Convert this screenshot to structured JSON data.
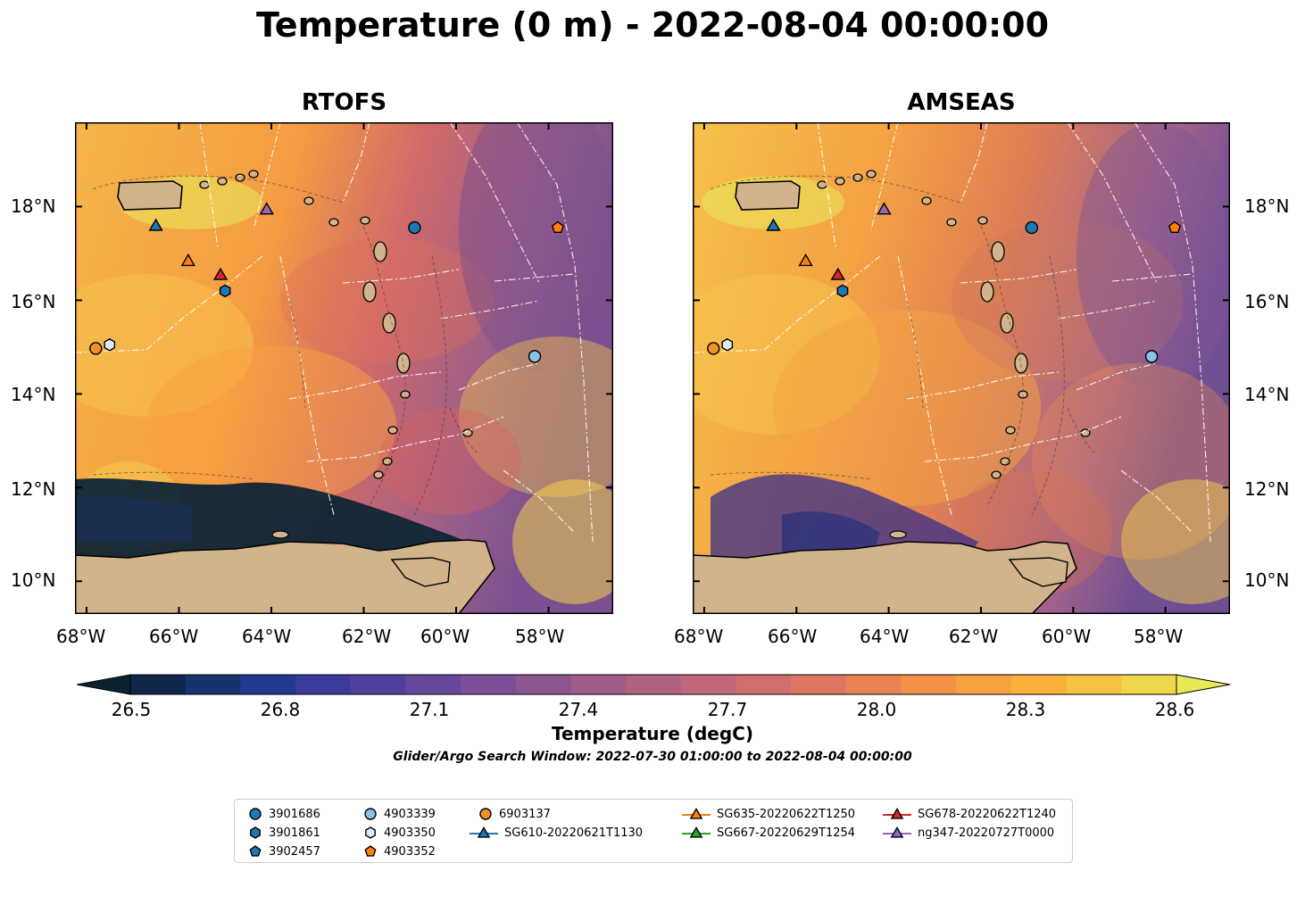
{
  "title": "Temperature (0 m) - 2022-08-04 00:00:00",
  "panels": [
    {
      "title": "RTOFS"
    },
    {
      "title": "AMSEAS"
    }
  ],
  "lon_labels": [
    "68°W",
    "66°W",
    "64°W",
    "62°W",
    "60°W",
    "58°W"
  ],
  "lat_labels": [
    "18°N",
    "16°N",
    "14°N",
    "12°N",
    "10°N"
  ],
  "colorbar": {
    "label": "Temperature (degC)",
    "min": 26.5,
    "max": 28.6,
    "ticks": [
      "26.5",
      "26.8",
      "27.1",
      "27.4",
      "27.7",
      "28.0",
      "28.3",
      "28.6"
    ]
  },
  "search_window": "Glider/Argo Search Window: 2022-07-30 01:00:00 to 2022-08-04 00:00:00",
  "colors": {
    "land": "#d2b48c",
    "ocean_cool": "#0f2535",
    "ocean_warm": "#f9a23b",
    "blue": "#1f77b4",
    "lightblue": "#8ec0e6",
    "orange": "#ff7f0e",
    "green": "#2ca02c",
    "red": "#d62728",
    "purple": "#9467bd"
  },
  "legend": [
    {
      "label": "3901686",
      "marker": "circle",
      "color": "#1f77b4"
    },
    {
      "label": "3901861",
      "marker": "hexagon",
      "color": "#1f77b4"
    },
    {
      "label": "3902457",
      "marker": "pentagon",
      "color": "#1f77b4"
    },
    {
      "label": "4903339",
      "marker": "circle",
      "color": "#8ec0e6"
    },
    {
      "label": "4903350",
      "marker": "hexagon",
      "color": "#deebf7"
    },
    {
      "label": "4903352",
      "marker": "pentagon",
      "color": "#ff7f0e"
    },
    {
      "label": "6903137",
      "marker": "circle",
      "color": "#f28e2b"
    },
    {
      "label": "SG610-20220621T1130",
      "marker": "triangle-line",
      "color": "#1f77b4"
    },
    {
      "label": "SG635-20220622T1250",
      "marker": "triangle-line",
      "color": "#ff7f0e"
    },
    {
      "label": "SG667-20220629T1254",
      "marker": "triangle-line",
      "color": "#2ca02c"
    },
    {
      "label": "SG678-20220622T1240",
      "marker": "triangle-line",
      "color": "#d62728"
    },
    {
      "label": "ng347-20220727T0000",
      "marker": "triangle-line",
      "color": "#9467bd"
    }
  ],
  "observations": [
    {
      "id": "3901686",
      "lon": -60.9,
      "lat": 17.55,
      "marker": "circle",
      "color": "#1f77b4"
    },
    {
      "id": "3901861",
      "lon": -65.0,
      "lat": 16.2,
      "marker": "hexagon",
      "color": "#1f77b4"
    },
    {
      "id": "4903339",
      "lon": -58.3,
      "lat": 14.8,
      "marker": "circle",
      "color": "#8ec0e6"
    },
    {
      "id": "4903350",
      "lon": -67.5,
      "lat": 15.05,
      "marker": "hexagon",
      "color": "#deebf7"
    },
    {
      "id": "4903352",
      "lon": -57.8,
      "lat": 17.55,
      "marker": "pentagon",
      "color": "#ff7f0e"
    },
    {
      "id": "6903137",
      "lon": -67.8,
      "lat": 14.97,
      "marker": "circle",
      "color": "#f28e2b"
    },
    {
      "id": "SG610-20220621T1130",
      "lon": -66.5,
      "lat": 17.6,
      "marker": "triangle",
      "color": "#1f77b4"
    },
    {
      "id": "SG635-20220622T1250",
      "lon": -65.8,
      "lat": 16.85,
      "marker": "triangle",
      "color": "#ff7f0e"
    },
    {
      "id": "SG678-20220622T1240",
      "lon": -65.1,
      "lat": 16.55,
      "marker": "triangle",
      "color": "#d62728"
    },
    {
      "id": "ng347-20220727T0000",
      "lon": -64.1,
      "lat": 17.95,
      "marker": "triangle",
      "color": "#9467bd"
    }
  ]
}
